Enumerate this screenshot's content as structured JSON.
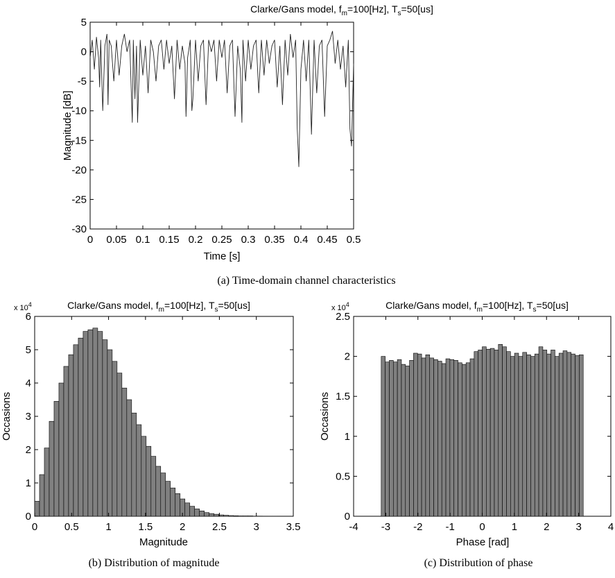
{
  "chart_data": [
    {
      "type": "line",
      "title": "Clarke/Gans model, f",
      "title_sub_m": "m",
      "title_mid": "=100[Hz], T",
      "title_sub_s": "s",
      "title_end": "=50[us]",
      "xlabel": "Time [s]",
      "ylabel": "Magnitude [dB]",
      "xlim": [
        0,
        0.5
      ],
      "ylim": [
        -30,
        5
      ],
      "xticks": [
        "0",
        "0.05",
        "0.1",
        "0.15",
        "0.2",
        "0.25",
        "0.3",
        "0.35",
        "0.4",
        "0.45",
        "0.5"
      ],
      "yticks": [
        "5",
        "0",
        "-5",
        "-10",
        "-15",
        "-20",
        "-25",
        "-30"
      ],
      "caption": "(a) Time-domain channel characteristics",
      "series": [
        {
          "x": [
            0,
            0.004,
            0.008,
            0.012,
            0.016,
            0.018,
            0.02,
            0.024,
            0.028,
            0.032,
            0.034,
            0.036,
            0.04,
            0.045,
            0.05,
            0.055,
            0.06,
            0.065,
            0.07,
            0.075,
            0.08,
            0.082,
            0.085,
            0.088,
            0.09,
            0.095,
            0.1,
            0.105,
            0.11,
            0.115,
            0.12,
            0.125,
            0.13,
            0.135,
            0.14,
            0.145,
            0.15,
            0.155,
            0.16,
            0.165,
            0.17,
            0.175,
            0.18,
            0.182,
            0.185,
            0.19,
            0.193,
            0.195,
            0.2,
            0.205,
            0.21,
            0.215,
            0.22,
            0.225,
            0.23,
            0.235,
            0.24,
            0.245,
            0.25,
            0.255,
            0.26,
            0.265,
            0.27,
            0.275,
            0.28,
            0.285,
            0.288,
            0.29,
            0.295,
            0.3,
            0.305,
            0.31,
            0.315,
            0.32,
            0.325,
            0.33,
            0.335,
            0.34,
            0.345,
            0.35,
            0.355,
            0.36,
            0.365,
            0.37,
            0.375,
            0.38,
            0.385,
            0.39,
            0.393,
            0.396,
            0.4,
            0.405,
            0.41,
            0.415,
            0.42,
            0.425,
            0.43,
            0.435,
            0.44,
            0.445,
            0.45,
            0.455,
            0.46,
            0.465,
            0.47,
            0.475,
            0.48,
            0.485,
            0.49,
            0.493,
            0.496,
            0.5
          ],
          "y": [
            -1,
            2,
            -3,
            2.5,
            -1,
            -6,
            2,
            -10,
            1,
            3,
            -9,
            2,
            1,
            -5,
            2,
            -4,
            1,
            3,
            0,
            2,
            -12,
            2,
            -8,
            1,
            -12,
            2,
            -4,
            1,
            -7,
            2,
            0,
            -5,
            1,
            2,
            -3,
            2,
            -2,
            1,
            -8,
            2,
            -3,
            1,
            -2,
            -11,
            -1,
            2,
            -10,
            -8,
            2,
            -5,
            1,
            2,
            -9,
            2,
            0,
            2,
            -5,
            2,
            -1,
            2,
            -7,
            1,
            2,
            -11,
            1,
            -3,
            -12,
            2,
            -5,
            2,
            -3,
            1,
            2,
            -7,
            2,
            -4,
            2,
            -2,
            1,
            2,
            -6,
            1,
            -9,
            2,
            -4,
            3,
            -1,
            2,
            -13,
            -19.5,
            -3,
            2,
            -5,
            2,
            -14,
            2,
            -7,
            1,
            2,
            -11,
            1,
            2,
            3.5,
            -2,
            2,
            -3,
            1,
            -6,
            2,
            -13,
            -16,
            -2
          ]
        }
      ]
    },
    {
      "type": "bar",
      "title": "Clarke/Gans model, f",
      "title_sub_m": "m",
      "title_mid": "=100[Hz], T",
      "title_sub_s": "s",
      "title_end": "=50[us]",
      "multiplier": "x 10",
      "multiplier_exp": "4",
      "xlabel": "Magnitude",
      "ylabel": "Occasions",
      "xlim": [
        0,
        3.5
      ],
      "ylim": [
        0,
        6
      ],
      "xticks": [
        "0",
        "0.5",
        "1",
        "1.5",
        "2",
        "2.5",
        "3",
        "3.5"
      ],
      "yticks": [
        "6",
        "5",
        "4",
        "3",
        "2",
        "1",
        "0"
      ],
      "caption": "(b) Distribution of magnitude",
      "bin_start": 0,
      "bin_width": 0.0656,
      "values": [
        0.45,
        1.25,
        2.05,
        2.85,
        3.45,
        4.0,
        4.5,
        4.85,
        5.15,
        5.35,
        5.55,
        5.6,
        5.65,
        5.55,
        5.3,
        5.0,
        4.65,
        4.3,
        3.85,
        3.5,
        3.1,
        2.75,
        2.4,
        2.1,
        1.8,
        1.5,
        1.3,
        1.05,
        0.85,
        0.68,
        0.52,
        0.4,
        0.3,
        0.22,
        0.16,
        0.11,
        0.08,
        0.06,
        0.04,
        0.03,
        0.02,
        0.015,
        0.01,
        0.01,
        0.01,
        0.005,
        0.005,
        0.004,
        0.003,
        0.002
      ]
    },
    {
      "type": "bar",
      "title": "Clarke/Gans model, f",
      "title_sub_m": "m",
      "title_mid": "=100[Hz], T",
      "title_sub_s": "s",
      "title_end": "=50[us]",
      "multiplier": "x 10",
      "multiplier_exp": "4",
      "xlabel": "Phase [rad]",
      "ylabel": "Occasions",
      "xlim": [
        -4,
        4
      ],
      "ylim": [
        0,
        2.5
      ],
      "xticks": [
        "-4",
        "-3",
        "-2",
        "-1",
        "0",
        "1",
        "2",
        "3",
        "4"
      ],
      "yticks": [
        "2.5",
        "2",
        "1.5",
        "1",
        "0.5",
        "0"
      ],
      "caption": "(c) Distribution of phase",
      "bin_start": -3.1416,
      "bin_width": 0.12566,
      "values": [
        2.0,
        1.93,
        1.95,
        1.93,
        1.96,
        1.9,
        1.88,
        1.95,
        2.04,
        2.03,
        1.98,
        2.02,
        1.98,
        1.96,
        1.94,
        1.91,
        1.97,
        1.96,
        1.95,
        1.92,
        1.9,
        1.92,
        1.97,
        2.06,
        2.08,
        2.12,
        2.09,
        2.1,
        2.08,
        2.15,
        2.12,
        2.06,
        2.0,
        2.04,
        2.0,
        2.05,
        2.02,
        2.0,
        2.03,
        2.12,
        2.08,
        2.03,
        2.08,
        2.0,
        2.04,
        2.07,
        2.05,
        2.03,
        2.01,
        2.02
      ]
    }
  ]
}
